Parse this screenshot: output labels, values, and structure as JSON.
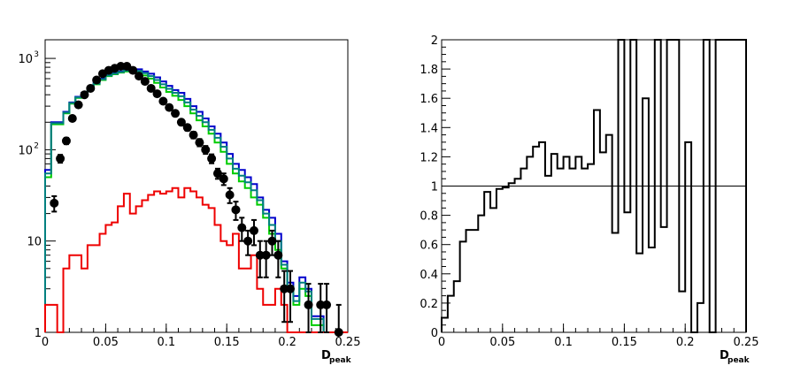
{
  "chart_data": [
    {
      "type": "line",
      "xlabel": "D",
      "xlabel_sub": "peak",
      "xlim": [
        0,
        0.25
      ],
      "ylim": [
        1,
        1600
      ],
      "yscale": "log",
      "x_ticks": [
        "0",
        "0.05",
        "0.1",
        "0.15",
        "0.2",
        "0.25"
      ],
      "y_ticks": [
        {
          "base": "1",
          "exp": ""
        },
        {
          "base": "10",
          "exp": ""
        },
        {
          "base": "10",
          "exp": "2"
        },
        {
          "base": "10",
          "exp": "3"
        }
      ],
      "bin_width": 0.005,
      "series": [
        {
          "color": "#0000cc",
          "style": "step",
          "values": [
            60,
            200,
            200,
            260,
            330,
            380,
            420,
            470,
            540,
            600,
            660,
            690,
            720,
            750,
            760,
            760,
            720,
            680,
            620,
            560,
            500,
            450,
            420,
            360,
            300,
            260,
            220,
            180,
            150,
            120,
            90,
            70,
            60,
            50,
            42,
            30,
            22,
            18,
            12,
            6,
            3.5,
            2.5,
            4,
            3,
            1.5,
            1.5,
            1,
            1,
            1,
            1
          ]
        },
        {
          "color": "#00cc00",
          "style": "step",
          "values": [
            50,
            190,
            190,
            250,
            320,
            370,
            410,
            460,
            520,
            580,
            640,
            670,
            700,
            720,
            720,
            700,
            650,
            600,
            540,
            480,
            430,
            390,
            350,
            300,
            250,
            210,
            180,
            150,
            120,
            95,
            70,
            55,
            45,
            38,
            30,
            25,
            18,
            12,
            8,
            5,
            3,
            2,
            3,
            2.5,
            1.2,
            1.2,
            1,
            1,
            1,
            1
          ]
        },
        {
          "color": "#008080",
          "style": "step",
          "values": [
            55,
            195,
            195,
            255,
            325,
            375,
            415,
            465,
            530,
            590,
            650,
            680,
            710,
            735,
            740,
            730,
            690,
            640,
            580,
            520,
            465,
            420,
            385,
            330,
            275,
            235,
            200,
            165,
            135,
            108,
            80,
            62,
            52,
            44,
            36,
            28,
            20,
            15,
            10,
            5.5,
            3.2,
            2.2,
            3.5,
            2.8,
            1.4,
            1.4,
            1,
            1,
            1,
            1
          ]
        },
        {
          "color": "#ee0000",
          "style": "step",
          "values": [
            2,
            2,
            1,
            5,
            7,
            7,
            5,
            9,
            9,
            12,
            15,
            16,
            24,
            33,
            20,
            24,
            28,
            32,
            35,
            33,
            35,
            38,
            30,
            38,
            35,
            30,
            25,
            23,
            15,
            10,
            9,
            12,
            5,
            5,
            7,
            3,
            2,
            2,
            3,
            2,
            1,
            1,
            1,
            1,
            1,
            1,
            1,
            1,
            1,
            1
          ]
        },
        {
          "color": "#000000",
          "style": "points",
          "x": [
            0.0075,
            0.0125,
            0.0175,
            0.0225,
            0.0275,
            0.0325,
            0.0375,
            0.0425,
            0.0475,
            0.0525,
            0.0575,
            0.0625,
            0.0675,
            0.0725,
            0.0775,
            0.0825,
            0.0875,
            0.0925,
            0.0975,
            0.1025,
            0.1075,
            0.1125,
            0.1175,
            0.1225,
            0.1275,
            0.1325,
            0.1375,
            0.1425,
            0.1475,
            0.1525,
            0.1575,
            0.1625,
            0.1675,
            0.1725,
            0.1775,
            0.1825,
            0.1875,
            0.1925,
            0.1975,
            0.2025,
            0.2175,
            0.2275,
            0.2325,
            0.2425
          ],
          "y": [
            26,
            80,
            125,
            220,
            310,
            400,
            470,
            580,
            680,
            740,
            780,
            820,
            820,
            740,
            640,
            560,
            470,
            410,
            340,
            290,
            250,
            200,
            175,
            145,
            120,
            100,
            80,
            55,
            48,
            32,
            22,
            14,
            10,
            13,
            7,
            7,
            10,
            7,
            3,
            3,
            2,
            2,
            2,
            1
          ],
          "err": [
            5,
            8,
            10,
            14,
            17,
            19,
            21,
            23,
            25,
            26,
            27,
            28,
            28,
            27,
            25,
            23,
            21,
            20,
            18,
            17,
            16,
            14,
            13,
            12,
            11,
            10,
            9,
            7,
            7,
            6,
            5,
            4,
            3,
            4,
            3,
            3,
            3,
            3,
            1.7,
            1.7,
            1.4,
            1.4,
            1.4,
            1
          ]
        }
      ]
    },
    {
      "type": "line",
      "xlabel": "D",
      "xlabel_sub": "peak",
      "xlim": [
        0,
        0.25
      ],
      "ylim": [
        0,
        2
      ],
      "x_ticks": [
        "0",
        "0.05",
        "0.1",
        "0.15",
        "0.2",
        "0.25"
      ],
      "y_ticks": [
        "0",
        "0.2",
        "0.4",
        "0.6",
        "0.8",
        "1",
        "1.2",
        "1.4",
        "1.6",
        "1.8",
        "2"
      ],
      "reference_line": 1,
      "bin_width": 0.005,
      "series": [
        {
          "color": "#000000",
          "style": "step",
          "values": [
            0.1,
            0.25,
            0.35,
            0.62,
            0.7,
            0.7,
            0.8,
            0.96,
            0.85,
            0.98,
            0.99,
            1.02,
            1.05,
            1.12,
            1.2,
            1.27,
            1.3,
            1.07,
            1.22,
            1.12,
            1.2,
            1.12,
            1.2,
            1.12,
            1.15,
            1.52,
            1.23,
            1.35,
            0.68,
            2,
            0.82,
            2,
            0.54,
            1.6,
            0.58,
            2,
            0.72,
            2,
            2,
            0.28,
            1.3,
            0,
            0.2,
            2,
            0,
            2,
            2,
            2,
            2,
            2
          ]
        }
      ]
    }
  ]
}
